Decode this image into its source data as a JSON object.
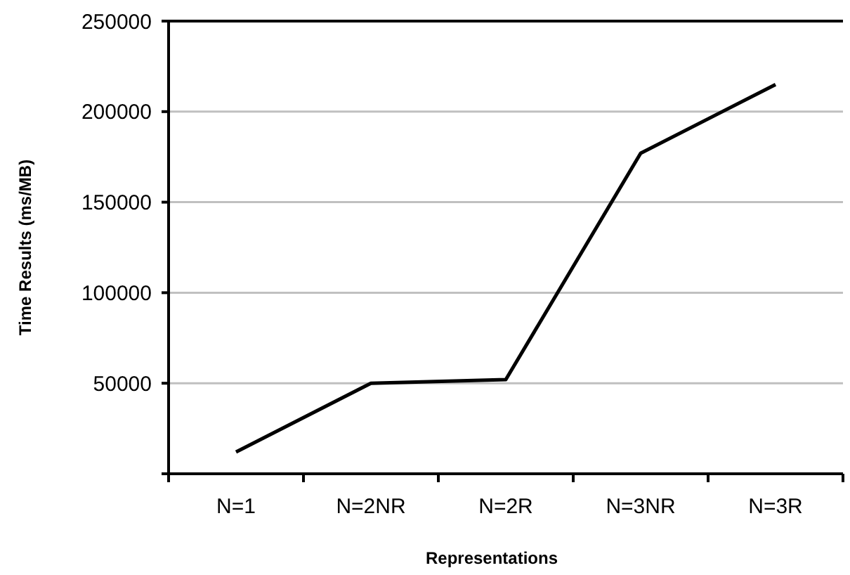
{
  "chart_data": {
    "type": "line",
    "xlabel": "Representations",
    "ylabel": "Time Results (ms/MB)",
    "categories": [
      "N=1",
      "N=2NR",
      "N=2R",
      "N=3NR",
      "N=3R"
    ],
    "series": [
      {
        "color": "#000000",
        "values": [
          12000,
          50000,
          52000,
          177000,
          215000
        ]
      }
    ],
    "ylim": [
      0,
      250000
    ],
    "yticks": [
      {
        "value": 0,
        "label": null
      },
      50000,
      100000,
      150000,
      200000,
      250000
    ],
    "grid": "y",
    "marker": "none",
    "line_style": "solid"
  }
}
